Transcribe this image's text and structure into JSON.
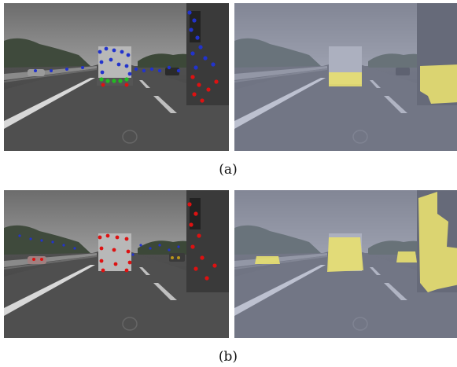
{
  "figure": {
    "caption_a": "(a)",
    "caption_b": "(b)"
  },
  "colors": {
    "sky_gray": "#7b7b7b",
    "road_gray": "#4b4b4b",
    "keypoint_blue": "#2233cc",
    "keypoint_red": "#dd1111",
    "keypoint_green": "#22bb22",
    "segment_yellow": "#e8e070",
    "tint_blue": "#9ea6c8"
  },
  "panels": [
    {
      "row": "a",
      "kind": "keypoints-overlay"
    },
    {
      "row": "a",
      "kind": "segmentation-overlay"
    },
    {
      "row": "b",
      "kind": "keypoints-overlay"
    },
    {
      "row": "b",
      "kind": "segmentation-overlay"
    }
  ]
}
